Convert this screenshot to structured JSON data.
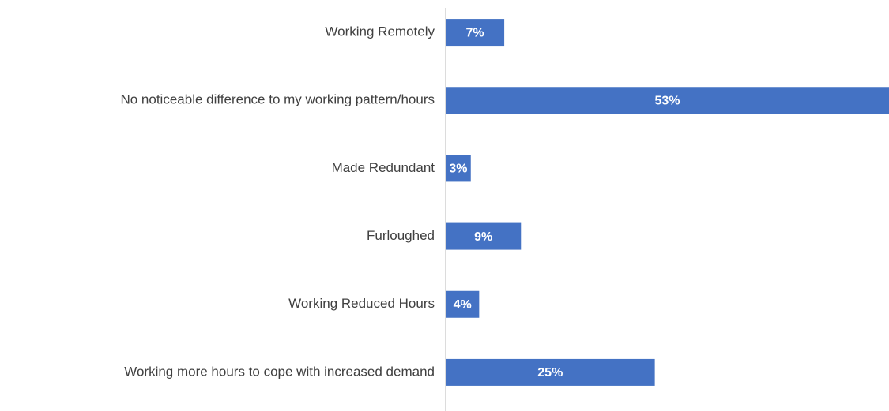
{
  "chart_data": {
    "type": "bar",
    "orientation": "horizontal",
    "categories": [
      "Working Remotely",
      "No noticeable difference to my working pattern/hours",
      "Made Redundant",
      "Furloughed",
      "Working Reduced Hours",
      "Working more hours to cope with increased demand"
    ],
    "values": [
      7,
      53,
      3,
      9,
      4,
      25
    ],
    "value_labels": [
      "7%",
      "53%",
      "3%",
      "9%",
      "4%",
      "25%"
    ],
    "color": "#4472c4"
  }
}
